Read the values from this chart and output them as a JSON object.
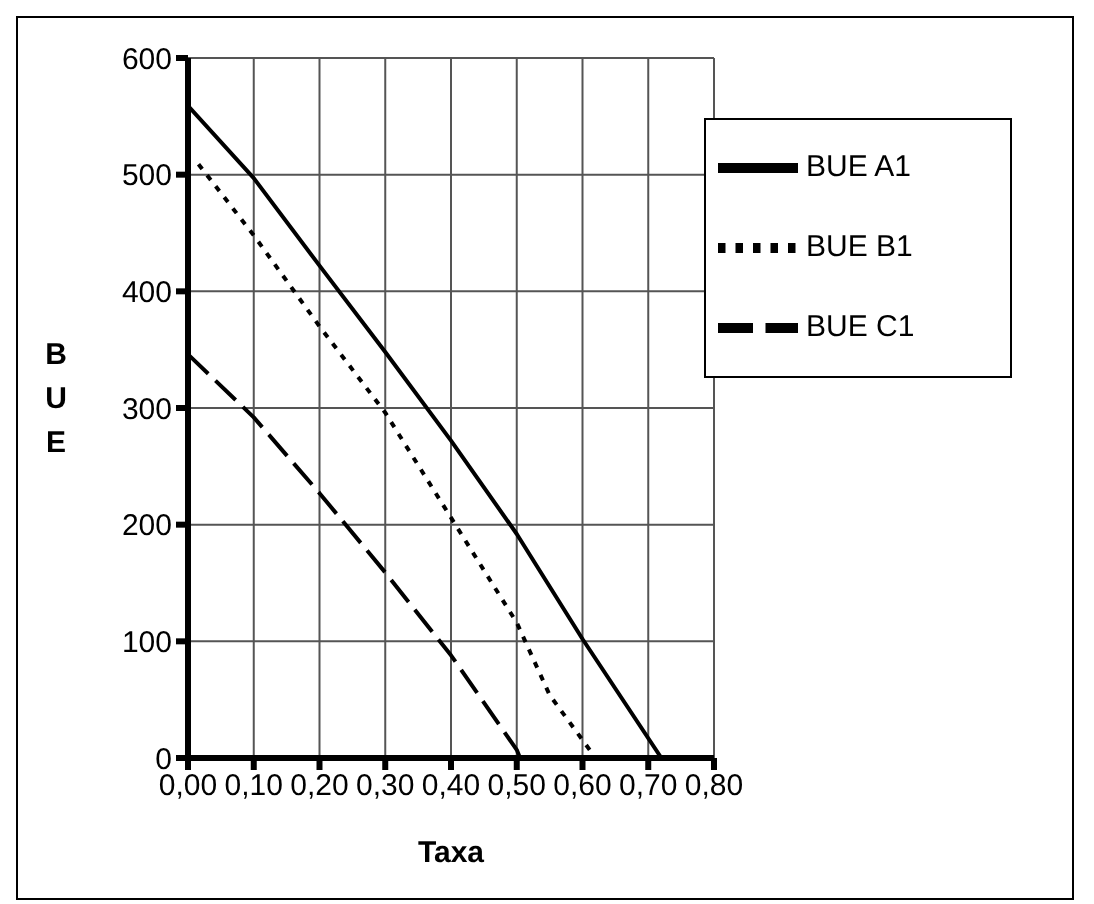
{
  "chart_data": {
    "type": "line",
    "xlabel": "Taxa",
    "ylabel": "BUE",
    "xlim": [
      0,
      0.8
    ],
    "xticks": [
      {
        "value": 0,
        "label": "0,00"
      },
      {
        "value": 0.1,
        "label": "0,10"
      },
      {
        "value": 0.2,
        "label": "0,20"
      },
      {
        "value": 0.3,
        "label": "0,30"
      },
      {
        "value": 0.4,
        "label": "0,40"
      },
      {
        "value": 0.5,
        "label": "0,50"
      },
      {
        "value": 0.6,
        "label": "0,60"
      },
      {
        "value": 0.7,
        "label": "0,70"
      },
      {
        "value": 0.8,
        "label": "0,80"
      }
    ],
    "ylim": [
      0,
      600
    ],
    "yticks": [
      0,
      100,
      200,
      300,
      400,
      500,
      600
    ],
    "grid": true,
    "legend": "top right",
    "marker": "none",
    "series": [
      {
        "name": "BUE A1",
        "color": "#000000",
        "line_style": "solid",
        "x": [
          0,
          0.1,
          0.2,
          0.3,
          0.4,
          0.5,
          0.6,
          0.72
        ],
        "values": [
          559,
          497,
          422,
          348,
          272,
          192,
          102,
          0
        ]
      },
      {
        "name": "BUE B1",
        "color": "#000000",
        "line_style": "dotted",
        "x": [
          0.016,
          0.1,
          0.2,
          0.3,
          0.4,
          0.5,
          0.55,
          0.62
        ],
        "values": [
          509,
          448,
          370,
          296,
          206,
          116,
          54,
          0
        ]
      },
      {
        "name": "BUE C1",
        "color": "#000000",
        "line_style": "dashed",
        "x": [
          0,
          0.1,
          0.2,
          0.3,
          0.4,
          0.5,
          0.505
        ],
        "values": [
          346,
          292,
          227,
          159,
          88,
          7,
          0
        ]
      }
    ]
  }
}
